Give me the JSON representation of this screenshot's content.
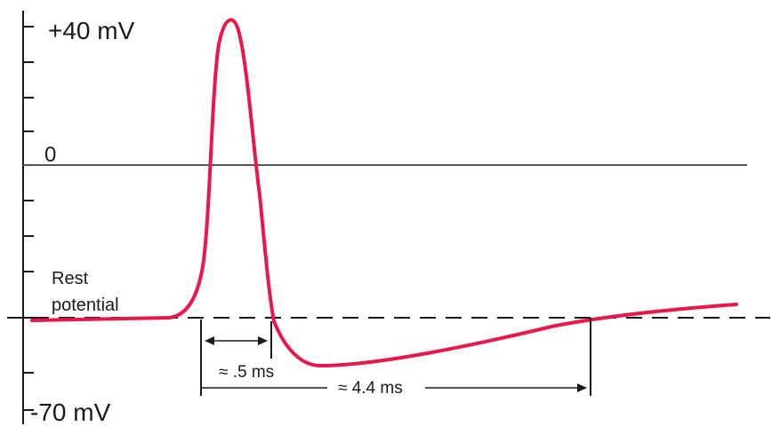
{
  "chart_data": {
    "type": "line",
    "title": "",
    "xlabel": "",
    "ylabel": "",
    "y_tick_labels": {
      "top": "+40 mV",
      "zero": "0",
      "bottom": "-70 mV"
    },
    "ylim": [
      -75,
      42
    ],
    "rest_label_line1": "Rest",
    "rest_label_line2": "potential",
    "rest_potential_mV": -55,
    "annotations": [
      {
        "text": "≈ .5 ms"
      },
      {
        "text": "≈ 4.4 ms"
      }
    ],
    "series": [
      {
        "color": "#e8194a",
        "values_mV": [
          -56,
          -56,
          -56,
          -55,
          -54,
          -45,
          0,
          33,
          40,
          36,
          12,
          -15,
          -50,
          -58,
          -64,
          -65,
          -64,
          -62,
          -60,
          -58,
          -56,
          -55,
          -54,
          -53,
          -53
        ]
      }
    ]
  }
}
